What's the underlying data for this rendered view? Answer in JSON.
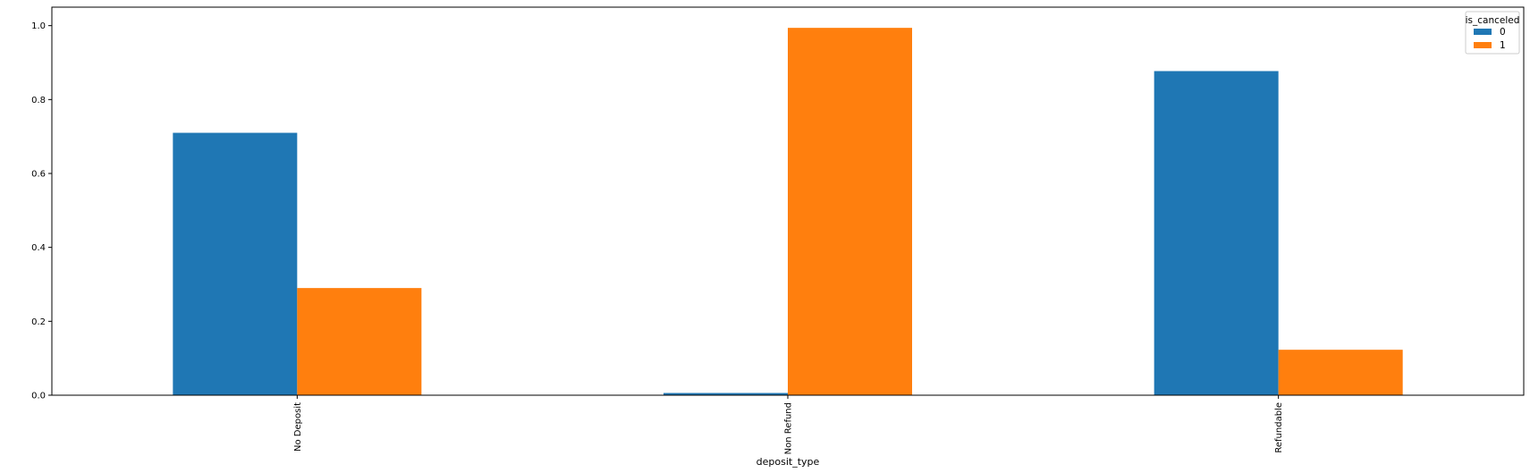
{
  "chart_data": {
    "type": "bar",
    "categories": [
      "No Deposit",
      "Non Refund",
      "Refundable"
    ],
    "xlabel": "deposit_type",
    "ylabel": "",
    "ylim": [
      0,
      1.05
    ],
    "yticks": [
      0.0,
      0.2,
      0.4,
      0.6,
      0.8,
      1.0
    ],
    "ytick_labels": [
      "0.0",
      "0.2",
      "0.4",
      "0.6",
      "0.8",
      "1.0"
    ],
    "grid": false,
    "legend": {
      "title": "is_canceled",
      "placement": "top-right"
    },
    "series": [
      {
        "name": "0",
        "color": "#1f77b4",
        "values": [
          0.71,
          0.006,
          0.877
        ]
      },
      {
        "name": "1",
        "color": "#ff7f0e",
        "values": [
          0.29,
          0.994,
          0.123
        ]
      }
    ]
  }
}
